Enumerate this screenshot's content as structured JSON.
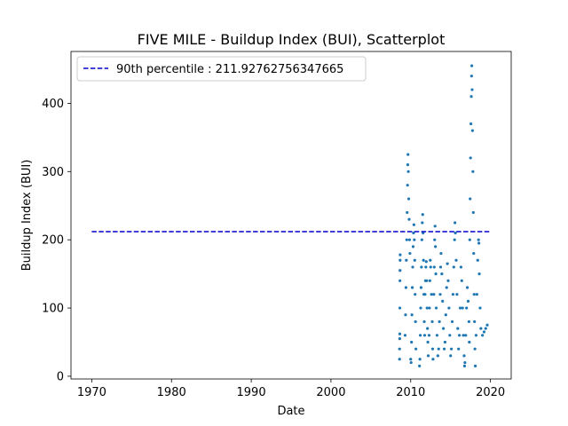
{
  "chart_data": {
    "type": "scatter",
    "title": "FIVE MILE - Buildup Index (BUI), Scatterplot",
    "xlabel": "Date",
    "ylabel": "Buildup Index (BUI)",
    "xlim": [
      1967.4,
      2022.6
    ],
    "ylim": [
      -4,
      476
    ],
    "x_ticks": [
      1970,
      1980,
      1990,
      2000,
      2010,
      2020
    ],
    "y_ticks": [
      0,
      100,
      200,
      300,
      400
    ],
    "legend_position": "top-left",
    "grid": false,
    "colors": {
      "points": "#1f77b4",
      "reference_line": "#0000cc"
    },
    "reference_line": {
      "label": "90th percentile : 211.92762756347665",
      "value": 211.92762756347665,
      "x_range": [
        1970,
        2020
      ]
    },
    "series": [
      {
        "points": [
          [
            2008.6,
            25
          ],
          [
            2008.6,
            40
          ],
          [
            2008.62,
            55
          ],
          [
            2008.63,
            62
          ],
          [
            2008.64,
            100
          ],
          [
            2008.65,
            140
          ],
          [
            2008.66,
            155
          ],
          [
            2008.67,
            170
          ],
          [
            2008.68,
            178
          ],
          [
            2009.3,
            60
          ],
          [
            2009.35,
            90
          ],
          [
            2009.4,
            130
          ],
          [
            2009.45,
            170
          ],
          [
            2009.5,
            200
          ],
          [
            2009.55,
            240
          ],
          [
            2009.6,
            280
          ],
          [
            2009.63,
            310
          ],
          [
            2009.66,
            325
          ],
          [
            2009.7,
            300
          ],
          [
            2009.75,
            260
          ],
          [
            2009.8,
            230
          ],
          [
            2009.85,
            200
          ],
          [
            2009.9,
            180
          ],
          [
            2010.0,
            25
          ],
          [
            2010.05,
            20
          ],
          [
            2010.1,
            50
          ],
          [
            2010.15,
            90
          ],
          [
            2010.2,
            130
          ],
          [
            2010.25,
            160
          ],
          [
            2010.3,
            190
          ],
          [
            2010.35,
            210
          ],
          [
            2010.4,
            222
          ],
          [
            2010.45,
            200
          ],
          [
            2010.5,
            170
          ],
          [
            2010.55,
            120
          ],
          [
            2010.6,
            80
          ],
          [
            2010.65,
            40
          ],
          [
            2011.1,
            15
          ],
          [
            2011.15,
            25
          ],
          [
            2011.2,
            60
          ],
          [
            2011.25,
            100
          ],
          [
            2011.3,
            130
          ],
          [
            2011.35,
            160
          ],
          [
            2011.4,
            200
          ],
          [
            2011.45,
            225
          ],
          [
            2011.5,
            237
          ],
          [
            2011.55,
            210
          ],
          [
            2011.6,
            170
          ],
          [
            2011.65,
            120
          ],
          [
            2011.7,
            80
          ],
          [
            2011.75,
            60
          ],
          [
            2011.8,
            120
          ],
          [
            2011.85,
            140
          ],
          [
            2011.9,
            160
          ],
          [
            2011.95,
            168
          ],
          [
            2012.0,
            140
          ],
          [
            2012.05,
            100
          ],
          [
            2012.1,
            70
          ],
          [
            2012.15,
            50
          ],
          [
            2012.2,
            30
          ],
          [
            2012.3,
            60
          ],
          [
            2012.35,
            100
          ],
          [
            2012.4,
            140
          ],
          [
            2012.45,
            170
          ],
          [
            2012.5,
            160
          ],
          [
            2012.6,
            120
          ],
          [
            2012.7,
            80
          ],
          [
            2012.75,
            40
          ],
          [
            2012.8,
            25
          ],
          [
            2012.9,
            120
          ],
          [
            2012.95,
            160
          ],
          [
            2013.0,
            200
          ],
          [
            2013.05,
            220
          ],
          [
            2013.1,
            190
          ],
          [
            2013.15,
            150
          ],
          [
            2013.2,
            100
          ],
          [
            2013.3,
            60
          ],
          [
            2013.4,
            30
          ],
          [
            2013.5,
            40
          ],
          [
            2013.6,
            80
          ],
          [
            2013.7,
            120
          ],
          [
            2013.75,
            160
          ],
          [
            2013.8,
            180
          ],
          [
            2013.9,
            150
          ],
          [
            2014.0,
            110
          ],
          [
            2014.1,
            70
          ],
          [
            2014.2,
            40
          ],
          [
            2014.3,
            50
          ],
          [
            2014.4,
            90
          ],
          [
            2014.5,
            130
          ],
          [
            2014.6,
            165
          ],
          [
            2014.7,
            140
          ],
          [
            2014.8,
            100
          ],
          [
            2014.9,
            60
          ],
          [
            2015.0,
            30
          ],
          [
            2015.1,
            40
          ],
          [
            2015.2,
            80
          ],
          [
            2015.3,
            120
          ],
          [
            2015.4,
            160
          ],
          [
            2015.5,
            200
          ],
          [
            2015.55,
            225
          ],
          [
            2015.6,
            210
          ],
          [
            2015.7,
            170
          ],
          [
            2015.8,
            120
          ],
          [
            2015.9,
            70
          ],
          [
            2016.0,
            40
          ],
          [
            2016.1,
            60
          ],
          [
            2016.2,
            100
          ],
          [
            2016.3,
            160
          ],
          [
            2016.4,
            140
          ],
          [
            2016.5,
            100
          ],
          [
            2016.6,
            60
          ],
          [
            2016.7,
            30
          ],
          [
            2016.75,
            15
          ],
          [
            2016.8,
            20
          ],
          [
            2016.9,
            60
          ],
          [
            2017.0,
            100
          ],
          [
            2017.1,
            130
          ],
          [
            2017.2,
            110
          ],
          [
            2017.3,
            80
          ],
          [
            2017.35,
            50
          ],
          [
            2017.4,
            200
          ],
          [
            2017.45,
            260
          ],
          [
            2017.5,
            320
          ],
          [
            2017.55,
            370
          ],
          [
            2017.6,
            410
          ],
          [
            2017.63,
            440
          ],
          [
            2017.66,
            455
          ],
          [
            2017.7,
            420
          ],
          [
            2017.75,
            360
          ],
          [
            2017.8,
            300
          ],
          [
            2017.85,
            240
          ],
          [
            2017.9,
            180
          ],
          [
            2017.95,
            120
          ],
          [
            2018.0,
            80
          ],
          [
            2018.05,
            40
          ],
          [
            2018.1,
            15
          ],
          [
            2018.2,
            60
          ],
          [
            2018.3,
            120
          ],
          [
            2018.4,
            170
          ],
          [
            2018.5,
            200
          ],
          [
            2018.55,
            195
          ],
          [
            2018.6,
            150
          ],
          [
            2018.7,
            100
          ],
          [
            2018.8,
            70
          ],
          [
            2019.0,
            60
          ],
          [
            2019.2,
            65
          ],
          [
            2019.4,
            70
          ],
          [
            2019.6,
            75
          ]
        ]
      }
    ]
  }
}
